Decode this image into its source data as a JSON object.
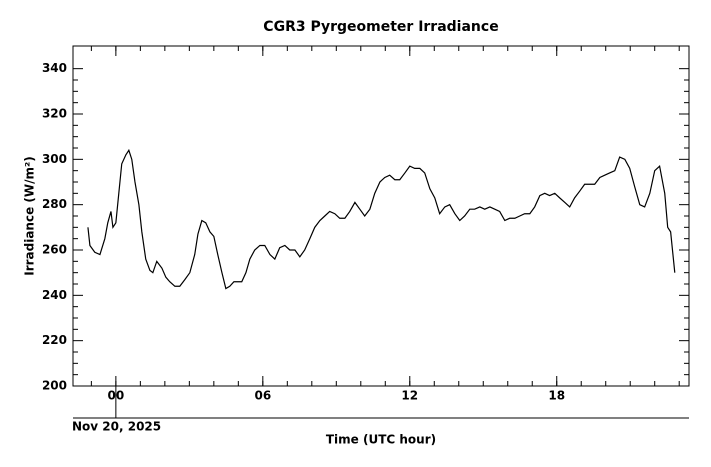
{
  "chart_data": {
    "type": "line",
    "title": "CGR3 Pyrgeometer Irradiance",
    "ylabel": "Irradiance (W/m²)",
    "xlabel": "Time (UTC hour)",
    "date_label": "Nov 20, 2025",
    "xlim": [
      -1.75,
      23.4
    ],
    "ylim": [
      200,
      350
    ],
    "xticks": [
      {
        "value": 0,
        "label": "00"
      },
      {
        "value": 6,
        "label": "06"
      },
      {
        "value": 12,
        "label": "12"
      },
      {
        "value": 18,
        "label": "18"
      }
    ],
    "yticks": [
      200,
      220,
      240,
      260,
      280,
      300,
      320,
      340
    ],
    "series": [
      {
        "color": "#000000",
        "x": [
          -1.14,
          -1.06,
          -0.86,
          -0.65,
          -0.45,
          -0.33,
          -0.2,
          -0.12,
          0,
          0.12,
          0.24,
          0.41,
          0.53,
          0.65,
          0.78,
          0.94,
          1.06,
          1.22,
          1.39,
          1.51,
          1.67,
          1.88,
          2.04,
          2.2,
          2.41,
          2.61,
          2.82,
          3.02,
          3.22,
          3.35,
          3.51,
          3.67,
          3.84,
          4.0,
          4.16,
          4.33,
          4.49,
          4.65,
          4.82,
          4.98,
          5.14,
          5.31,
          5.47,
          5.67,
          5.88,
          6.08,
          6.29,
          6.49,
          6.69,
          6.9,
          7.1,
          7.31,
          7.51,
          7.71,
          7.92,
          8.12,
          8.33,
          8.53,
          8.73,
          8.94,
          9.14,
          9.35,
          9.55,
          9.76,
          9.96,
          10.16,
          10.37,
          10.57,
          10.78,
          10.98,
          11.18,
          11.39,
          11.59,
          11.8,
          12.0,
          12.2,
          12.41,
          12.61,
          12.82,
          13.02,
          13.22,
          13.43,
          13.63,
          13.84,
          14.04,
          14.24,
          14.45,
          14.65,
          14.86,
          15.06,
          15.27,
          15.47,
          15.67,
          15.88,
          16.08,
          16.29,
          16.49,
          16.69,
          16.9,
          17.1,
          17.31,
          17.51,
          17.71,
          17.92,
          18.12,
          18.33,
          18.53,
          18.73,
          18.94,
          19.14,
          19.35,
          19.55,
          19.76,
          19.96,
          20.16,
          20.37,
          20.57,
          20.78,
          20.98,
          21.18,
          21.39,
          21.59,
          21.8,
          22.0,
          22.2,
          22.41,
          22.53,
          22.65,
          22.82
        ],
        "values": [
          270,
          262,
          259,
          258,
          265,
          272,
          277,
          270,
          272,
          285,
          298,
          302,
          304,
          300,
          290,
          280,
          268,
          256,
          251,
          250,
          255,
          252,
          248,
          246,
          244,
          244,
          247,
          250,
          258,
          267,
          273,
          272,
          268,
          266,
          258,
          250,
          243,
          244,
          246,
          246,
          246,
          250,
          256,
          260,
          262,
          262,
          258,
          256,
          261,
          262,
          260,
          260,
          257,
          260,
          265,
          270,
          273,
          275,
          277,
          276,
          274,
          274,
          277,
          281,
          278,
          275,
          278,
          285,
          290,
          292,
          293,
          291,
          291,
          294,
          297,
          296,
          296,
          294,
          287,
          283,
          276,
          279,
          280,
          276,
          273,
          275,
          278,
          278,
          279,
          278,
          279,
          278,
          277,
          273,
          274,
          274,
          275,
          276,
          276,
          279,
          284,
          285,
          284,
          285,
          283,
          281,
          279,
          283,
          286,
          289,
          289,
          289,
          292,
          293,
          294,
          295,
          301,
          300,
          296,
          288,
          280,
          279,
          285,
          295,
          297,
          285,
          270,
          268,
          250
        ]
      }
    ]
  }
}
